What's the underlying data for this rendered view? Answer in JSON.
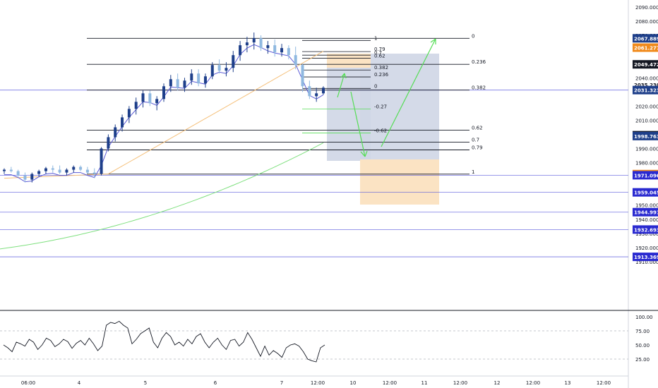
{
  "colors": {
    "candle": "#1e3f8a",
    "ma_fast": "#5b5bd6",
    "ma_mid": "#f5c07a",
    "ma_slow": "#7fe07f",
    "fib_line": "#131722",
    "hline": "#5555dd",
    "arrow": "#55dd55",
    "rsi": "#131722",
    "buy_zone": "#fbe3c3",
    "target_zone": "#cfd6e6"
  },
  "chart_data": [
    {
      "type": "candlestick",
      "title": "",
      "y_axis": {
        "ticks": [
          "2090.000",
          "2080.000",
          "2070.000",
          "2040.000",
          "2030.000",
          "2020.000",
          "2010.000",
          "1990.000",
          "1980.000",
          "1960.000",
          "1950.000",
          "1940.000",
          "1930.000",
          "1920.000",
          "1910.000"
        ],
        "range": [
          1908,
          2094
        ]
      },
      "x_axis": {
        "ticks": [
          "06:00",
          "4",
          "5",
          "6",
          "7",
          "12:00",
          "10",
          "12:00",
          "11",
          "12:00",
          "12",
          "12:00",
          "13",
          "12:00"
        ]
      },
      "candles": [
        [
          1974,
          1976,
          1972,
          1975
        ],
        [
          1975,
          1977,
          1973,
          1974
        ],
        [
          1974,
          1975,
          1970,
          1971
        ],
        [
          1971,
          1973,
          1966,
          1968
        ],
        [
          1968,
          1973,
          1966,
          1972
        ],
        [
          1972,
          1975,
          1970,
          1974
        ],
        [
          1974,
          1977,
          1972,
          1976
        ],
        [
          1976,
          1978,
          1973,
          1975
        ],
        [
          1975,
          1978,
          1972,
          1973
        ],
        [
          1973,
          1976,
          1971,
          1975
        ],
        [
          1975,
          1978,
          1973,
          1977
        ],
        [
          1977,
          1978,
          1974,
          1975
        ],
        [
          1975,
          1977,
          1972,
          1973
        ],
        [
          1973,
          1976,
          1969,
          1972
        ],
        [
          1972,
          1991,
          1971,
          1990
        ],
        [
          1990,
          2000,
          1988,
          1998
        ],
        [
          1998,
          2007,
          1995,
          2005
        ],
        [
          2005,
          2014,
          2002,
          2012
        ],
        [
          2012,
          2020,
          2008,
          2018
        ],
        [
          2018,
          2026,
          2014,
          2023
        ],
        [
          2023,
          2031,
          2019,
          2029
        ],
        [
          2029,
          2031,
          2020,
          2022
        ],
        [
          2022,
          2027,
          2017,
          2025
        ],
        [
          2025,
          2036,
          2023,
          2034
        ],
        [
          2034,
          2042,
          2030,
          2039
        ],
        [
          2039,
          2043,
          2031,
          2033
        ],
        [
          2033,
          2040,
          2030,
          2038
        ],
        [
          2038,
          2046,
          2035,
          2043
        ],
        [
          2043,
          2046,
          2034,
          2036
        ],
        [
          2036,
          2043,
          2033,
          2041
        ],
        [
          2041,
          2051,
          2039,
          2049
        ],
        [
          2049,
          2053,
          2043,
          2045
        ],
        [
          2045,
          2051,
          2041,
          2047
        ],
        [
          2047,
          2059,
          2044,
          2056
        ],
        [
          2056,
          2066,
          2052,
          2063
        ],
        [
          2063,
          2069,
          2058,
          2065
        ],
        [
          2065,
          2072,
          2060,
          2068
        ],
        [
          2068,
          2070,
          2059,
          2061
        ],
        [
          2061,
          2066,
          2057,
          2063
        ],
        [
          2063,
          2067,
          2055,
          2058
        ],
        [
          2058,
          2064,
          2055,
          2061
        ],
        [
          2061,
          2063,
          2053,
          2056
        ],
        [
          2056,
          2062,
          2046,
          2049
        ],
        [
          2049,
          2050,
          2030,
          2034
        ],
        [
          2034,
          2038,
          2025,
          2027
        ],
        [
          2027,
          2033,
          2023,
          2029
        ],
        [
          2029,
          2034,
          2028,
          2033
        ]
      ],
      "reference_levels": [
        "2067.889",
        "2061.277",
        "2049.472",
        "2035.230",
        "2031.323",
        "1999.392",
        "1998.763",
        "1971.940",
        "1971.096",
        "1959.045",
        "1944.991",
        "1932.693",
        "1913.369"
      ],
      "fib_left": {
        "labels": [
          "0",
          "0.236",
          "0.382",
          "0.62",
          "0.7",
          "0.79",
          "1"
        ]
      },
      "fib_right": {
        "labels": [
          "1",
          "0.79",
          "0.7",
          "0.62",
          "0.382",
          "0.236",
          "0",
          "-0.27",
          "-0.62"
        ]
      }
    },
    {
      "type": "line",
      "name": "oscillator",
      "y_axis": {
        "ticks": [
          "100.00",
          "75.00",
          "50.00",
          "25.00"
        ],
        "range": [
          0,
          100
        ]
      },
      "values": [
        50,
        45,
        38,
        55,
        52,
        48,
        60,
        55,
        42,
        50,
        62,
        58,
        47,
        52,
        60,
        56,
        44,
        53,
        58,
        50,
        62,
        52,
        40,
        48,
        85,
        90,
        88,
        92,
        85,
        80,
        52,
        60,
        70,
        75,
        80,
        55,
        45,
        62,
        72,
        65,
        50,
        55,
        48,
        60,
        52,
        65,
        70,
        55,
        45,
        55,
        62,
        50,
        42,
        58,
        60,
        48,
        55,
        72,
        60,
        45,
        30,
        48,
        32,
        40,
        35,
        28,
        45,
        50,
        52,
        48,
        38,
        25,
        22,
        20,
        45,
        50
      ]
    }
  ]
}
